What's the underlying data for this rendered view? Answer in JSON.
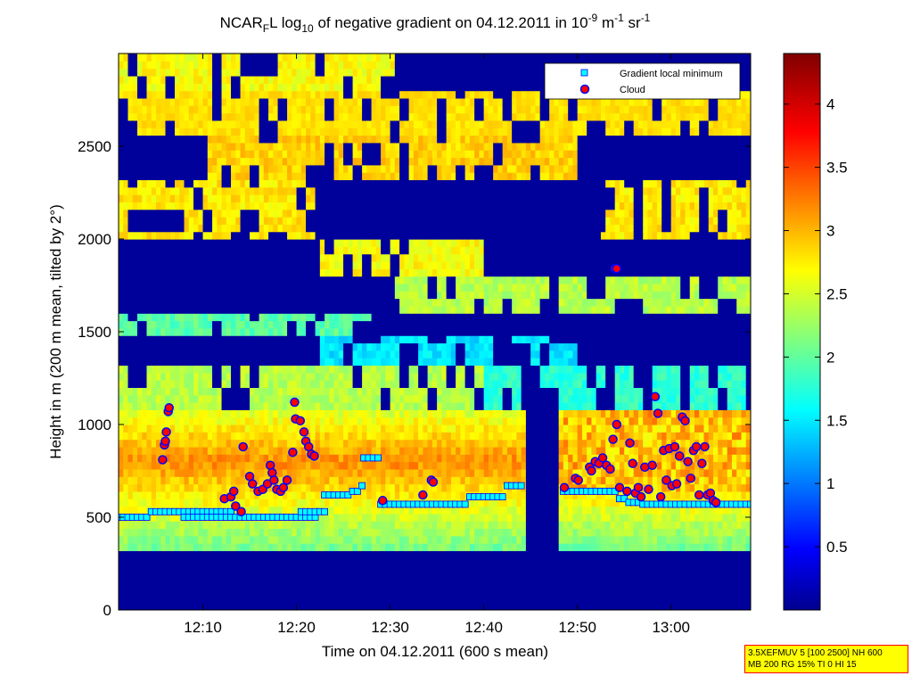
{
  "chart_data": {
    "type": "heatmap",
    "title": {
      "prefix": "NCAR",
      "sub_1": "F",
      "mid": "L log",
      "sub_2": "10",
      "rest": " of negative gradient on 04.12.2011 in 10",
      "sup_1": "-9",
      "unit_m": " m",
      "sup_2": "-1",
      "unit_sr": " sr",
      "sup_3": "-1"
    },
    "xlabel": "Time on 04.12.2011 (600 s mean)",
    "ylabel": "Height in m (200 m mean, tilted by 2°)",
    "x_ticks": [
      {
        "t": 10,
        "label": "12:10"
      },
      {
        "t": 20,
        "label": "12:20"
      },
      {
        "t": 30,
        "label": "12:30"
      },
      {
        "t": 40,
        "label": "12:40"
      },
      {
        "t": 50,
        "label": "12:50"
      },
      {
        "t": 60,
        "label": "13:00"
      }
    ],
    "x_range_minutes_after_12_00": [
      1,
      68.5
    ],
    "y_ticks": [
      0,
      500,
      1000,
      1500,
      2000,
      2500
    ],
    "ylim": [
      0,
      3000
    ],
    "colorbar": {
      "range": [
        0,
        4.4
      ],
      "ticks": [
        "0.5",
        "1",
        "1.5",
        "2",
        "2.5",
        "3",
        "3.5",
        "4"
      ],
      "tick_values": [
        0.5,
        1,
        1.5,
        2,
        2.5,
        3,
        3.5,
        4
      ]
    },
    "legend": {
      "position": "top-right",
      "entries": [
        {
          "label": "Gradient local minimum",
          "marker": "square",
          "color": "#00ffff"
        },
        {
          "label": "Cloud",
          "marker": "circle",
          "color": "#ff0000",
          "edge": "#0000ff"
        }
      ]
    },
    "series": [
      {
        "name": "Gradient local minimum",
        "points": [
          [
            1,
            500
          ],
          [
            1.5,
            500
          ],
          [
            2,
            500
          ],
          [
            2.5,
            500
          ],
          [
            3,
            500
          ],
          [
            3.5,
            500
          ],
          [
            4,
            500
          ],
          [
            4.5,
            530
          ],
          [
            5,
            530
          ],
          [
            5.5,
            530
          ],
          [
            6,
            530
          ],
          [
            6.5,
            530
          ],
          [
            7,
            530
          ],
          [
            7.5,
            530
          ],
          [
            8,
            530
          ],
          [
            8.5,
            530
          ],
          [
            9,
            530
          ],
          [
            9.5,
            530
          ],
          [
            10,
            530
          ],
          [
            10.5,
            530
          ],
          [
            11,
            530
          ],
          [
            11.5,
            530
          ],
          [
            12,
            530
          ],
          [
            12.5,
            530
          ],
          [
            13,
            530
          ],
          [
            8,
            500
          ],
          [
            8.5,
            500
          ],
          [
            9,
            500
          ],
          [
            9.5,
            500
          ],
          [
            10,
            500
          ],
          [
            10.5,
            500
          ],
          [
            11,
            500
          ],
          [
            11.5,
            500
          ],
          [
            12,
            500
          ],
          [
            12.5,
            500
          ],
          [
            13,
            500
          ],
          [
            13.5,
            500
          ],
          [
            14,
            500
          ],
          [
            14.5,
            500
          ],
          [
            15,
            500
          ],
          [
            15.5,
            500
          ],
          [
            16,
            500
          ],
          [
            16.5,
            500
          ],
          [
            17,
            500
          ],
          [
            17.5,
            500
          ],
          [
            18,
            500
          ],
          [
            18.5,
            500
          ],
          [
            19,
            500
          ],
          [
            19.5,
            500
          ],
          [
            20,
            500
          ],
          [
            20.5,
            500
          ],
          [
            21,
            500
          ],
          [
            21.5,
            500
          ],
          [
            22,
            500
          ],
          [
            20.5,
            530
          ],
          [
            21,
            530
          ],
          [
            21.5,
            530
          ],
          [
            22,
            530
          ],
          [
            22.5,
            530
          ],
          [
            23,
            530
          ],
          [
            23,
            620
          ],
          [
            23.5,
            620
          ],
          [
            24,
            620
          ],
          [
            24.5,
            620
          ],
          [
            25,
            620
          ],
          [
            25.5,
            620
          ],
          [
            26,
            640
          ],
          [
            26.5,
            640
          ],
          [
            27,
            670
          ],
          [
            27.2,
            820
          ],
          [
            27.7,
            820
          ],
          [
            28.2,
            820
          ],
          [
            28.7,
            820
          ],
          [
            29,
            570
          ],
          [
            29.5,
            570
          ],
          [
            30,
            570
          ],
          [
            30.5,
            570
          ],
          [
            31,
            570
          ],
          [
            31.5,
            570
          ],
          [
            32,
            570
          ],
          [
            32.5,
            570
          ],
          [
            33,
            570
          ],
          [
            33.5,
            570
          ],
          [
            34,
            570
          ],
          [
            34.5,
            570
          ],
          [
            35,
            570
          ],
          [
            35.5,
            570
          ],
          [
            36,
            570
          ],
          [
            36.5,
            570
          ],
          [
            37,
            570
          ],
          [
            37.5,
            570
          ],
          [
            38,
            570
          ],
          [
            38.5,
            610
          ],
          [
            39,
            610
          ],
          [
            39.5,
            610
          ],
          [
            40,
            610
          ],
          [
            40.5,
            610
          ],
          [
            41,
            610
          ],
          [
            41.5,
            610
          ],
          [
            42,
            610
          ],
          [
            42.5,
            670
          ],
          [
            43,
            670
          ],
          [
            43.5,
            670
          ],
          [
            44,
            670
          ],
          [
            48.5,
            640
          ],
          [
            49,
            640
          ],
          [
            49.5,
            640
          ],
          [
            50,
            640
          ],
          [
            50.5,
            640
          ],
          [
            51,
            640
          ],
          [
            51.5,
            640
          ],
          [
            52,
            640
          ],
          [
            52.5,
            640
          ],
          [
            53,
            640
          ],
          [
            53.5,
            640
          ],
          [
            54,
            640
          ],
          [
            54.5,
            600
          ],
          [
            55,
            600
          ],
          [
            55.5,
            580
          ],
          [
            56,
            580
          ],
          [
            56.5,
            580
          ],
          [
            57,
            570
          ],
          [
            57.5,
            570
          ],
          [
            58,
            570
          ],
          [
            58.5,
            570
          ],
          [
            59,
            570
          ],
          [
            59.5,
            570
          ],
          [
            60,
            570
          ],
          [
            60.5,
            570
          ],
          [
            61,
            570
          ],
          [
            61.5,
            570
          ],
          [
            62,
            570
          ],
          [
            62.5,
            570
          ],
          [
            63,
            570
          ],
          [
            63.5,
            570
          ],
          [
            64,
            570
          ],
          [
            64.5,
            570
          ],
          [
            65,
            570
          ],
          [
            65.5,
            570
          ],
          [
            66,
            570
          ],
          [
            66.5,
            570
          ],
          [
            67,
            570
          ],
          [
            67.5,
            570
          ],
          [
            68,
            570
          ],
          [
            68.5,
            570
          ]
        ]
      },
      {
        "name": "Cloud",
        "points": [
          [
            5.7,
            810
          ],
          [
            5.9,
            890
          ],
          [
            6.0,
            910
          ],
          [
            6.1,
            960
          ],
          [
            6.3,
            1070
          ],
          [
            6.4,
            1090
          ],
          [
            12.3,
            600
          ],
          [
            13.0,
            610
          ],
          [
            13.3,
            640
          ],
          [
            13.5,
            560
          ],
          [
            14.1,
            530
          ],
          [
            14.3,
            880
          ],
          [
            15.0,
            720
          ],
          [
            15.3,
            680
          ],
          [
            15.9,
            640
          ],
          [
            16.4,
            650
          ],
          [
            16.9,
            680
          ],
          [
            17.2,
            780
          ],
          [
            17.4,
            740
          ],
          [
            17.6,
            700
          ],
          [
            17.9,
            650
          ],
          [
            18.3,
            640
          ],
          [
            18.6,
            660
          ],
          [
            19.0,
            700
          ],
          [
            19.6,
            850
          ],
          [
            19.8,
            1120
          ],
          [
            19.9,
            1030
          ],
          [
            20.4,
            1020
          ],
          [
            20.8,
            960
          ],
          [
            21.0,
            910
          ],
          [
            21.3,
            880
          ],
          [
            21.6,
            840
          ],
          [
            21.9,
            830
          ],
          [
            29.2,
            590
          ],
          [
            33.5,
            620
          ],
          [
            34.4,
            700
          ],
          [
            34.6,
            690
          ],
          [
            48.6,
            660
          ],
          [
            49.8,
            710
          ],
          [
            50.1,
            700
          ],
          [
            51.3,
            770
          ],
          [
            51.5,
            750
          ],
          [
            51.9,
            800
          ],
          [
            52.3,
            790
          ],
          [
            52.7,
            820
          ],
          [
            53.1,
            780
          ],
          [
            53.5,
            760
          ],
          [
            53.8,
            920
          ],
          [
            54.2,
            1000
          ],
          [
            54.0,
            1840
          ],
          [
            54.2,
            1840
          ],
          [
            54.5,
            660
          ],
          [
            55.3,
            640
          ],
          [
            55.6,
            900
          ],
          [
            55.9,
            790
          ],
          [
            56.2,
            630
          ],
          [
            56.5,
            660
          ],
          [
            56.8,
            610
          ],
          [
            57.2,
            770
          ],
          [
            57.6,
            650
          ],
          [
            58.0,
            780
          ],
          [
            58.3,
            1150
          ],
          [
            58.6,
            1060
          ],
          [
            58.9,
            610
          ],
          [
            59.2,
            860
          ],
          [
            59.5,
            700
          ],
          [
            59.8,
            870
          ],
          [
            60.1,
            670
          ],
          [
            60.4,
            880
          ],
          [
            60.6,
            680
          ],
          [
            60.9,
            830
          ],
          [
            61.2,
            1040
          ],
          [
            61.5,
            1020
          ],
          [
            61.8,
            800
          ],
          [
            62.1,
            710
          ],
          [
            62.4,
            860
          ],
          [
            62.7,
            880
          ],
          [
            63.0,
            620
          ],
          [
            63.3,
            790
          ],
          [
            63.6,
            880
          ],
          [
            63.9,
            620
          ],
          [
            64.2,
            630
          ],
          [
            64.5,
            590
          ],
          [
            64.8,
            580
          ]
        ]
      }
    ]
  },
  "note": {
    "line1": "3.5XEFMUV 5 [100 2500] NH 600",
    "line2": "MB 200 RG 15% TI 0 HI 15"
  }
}
